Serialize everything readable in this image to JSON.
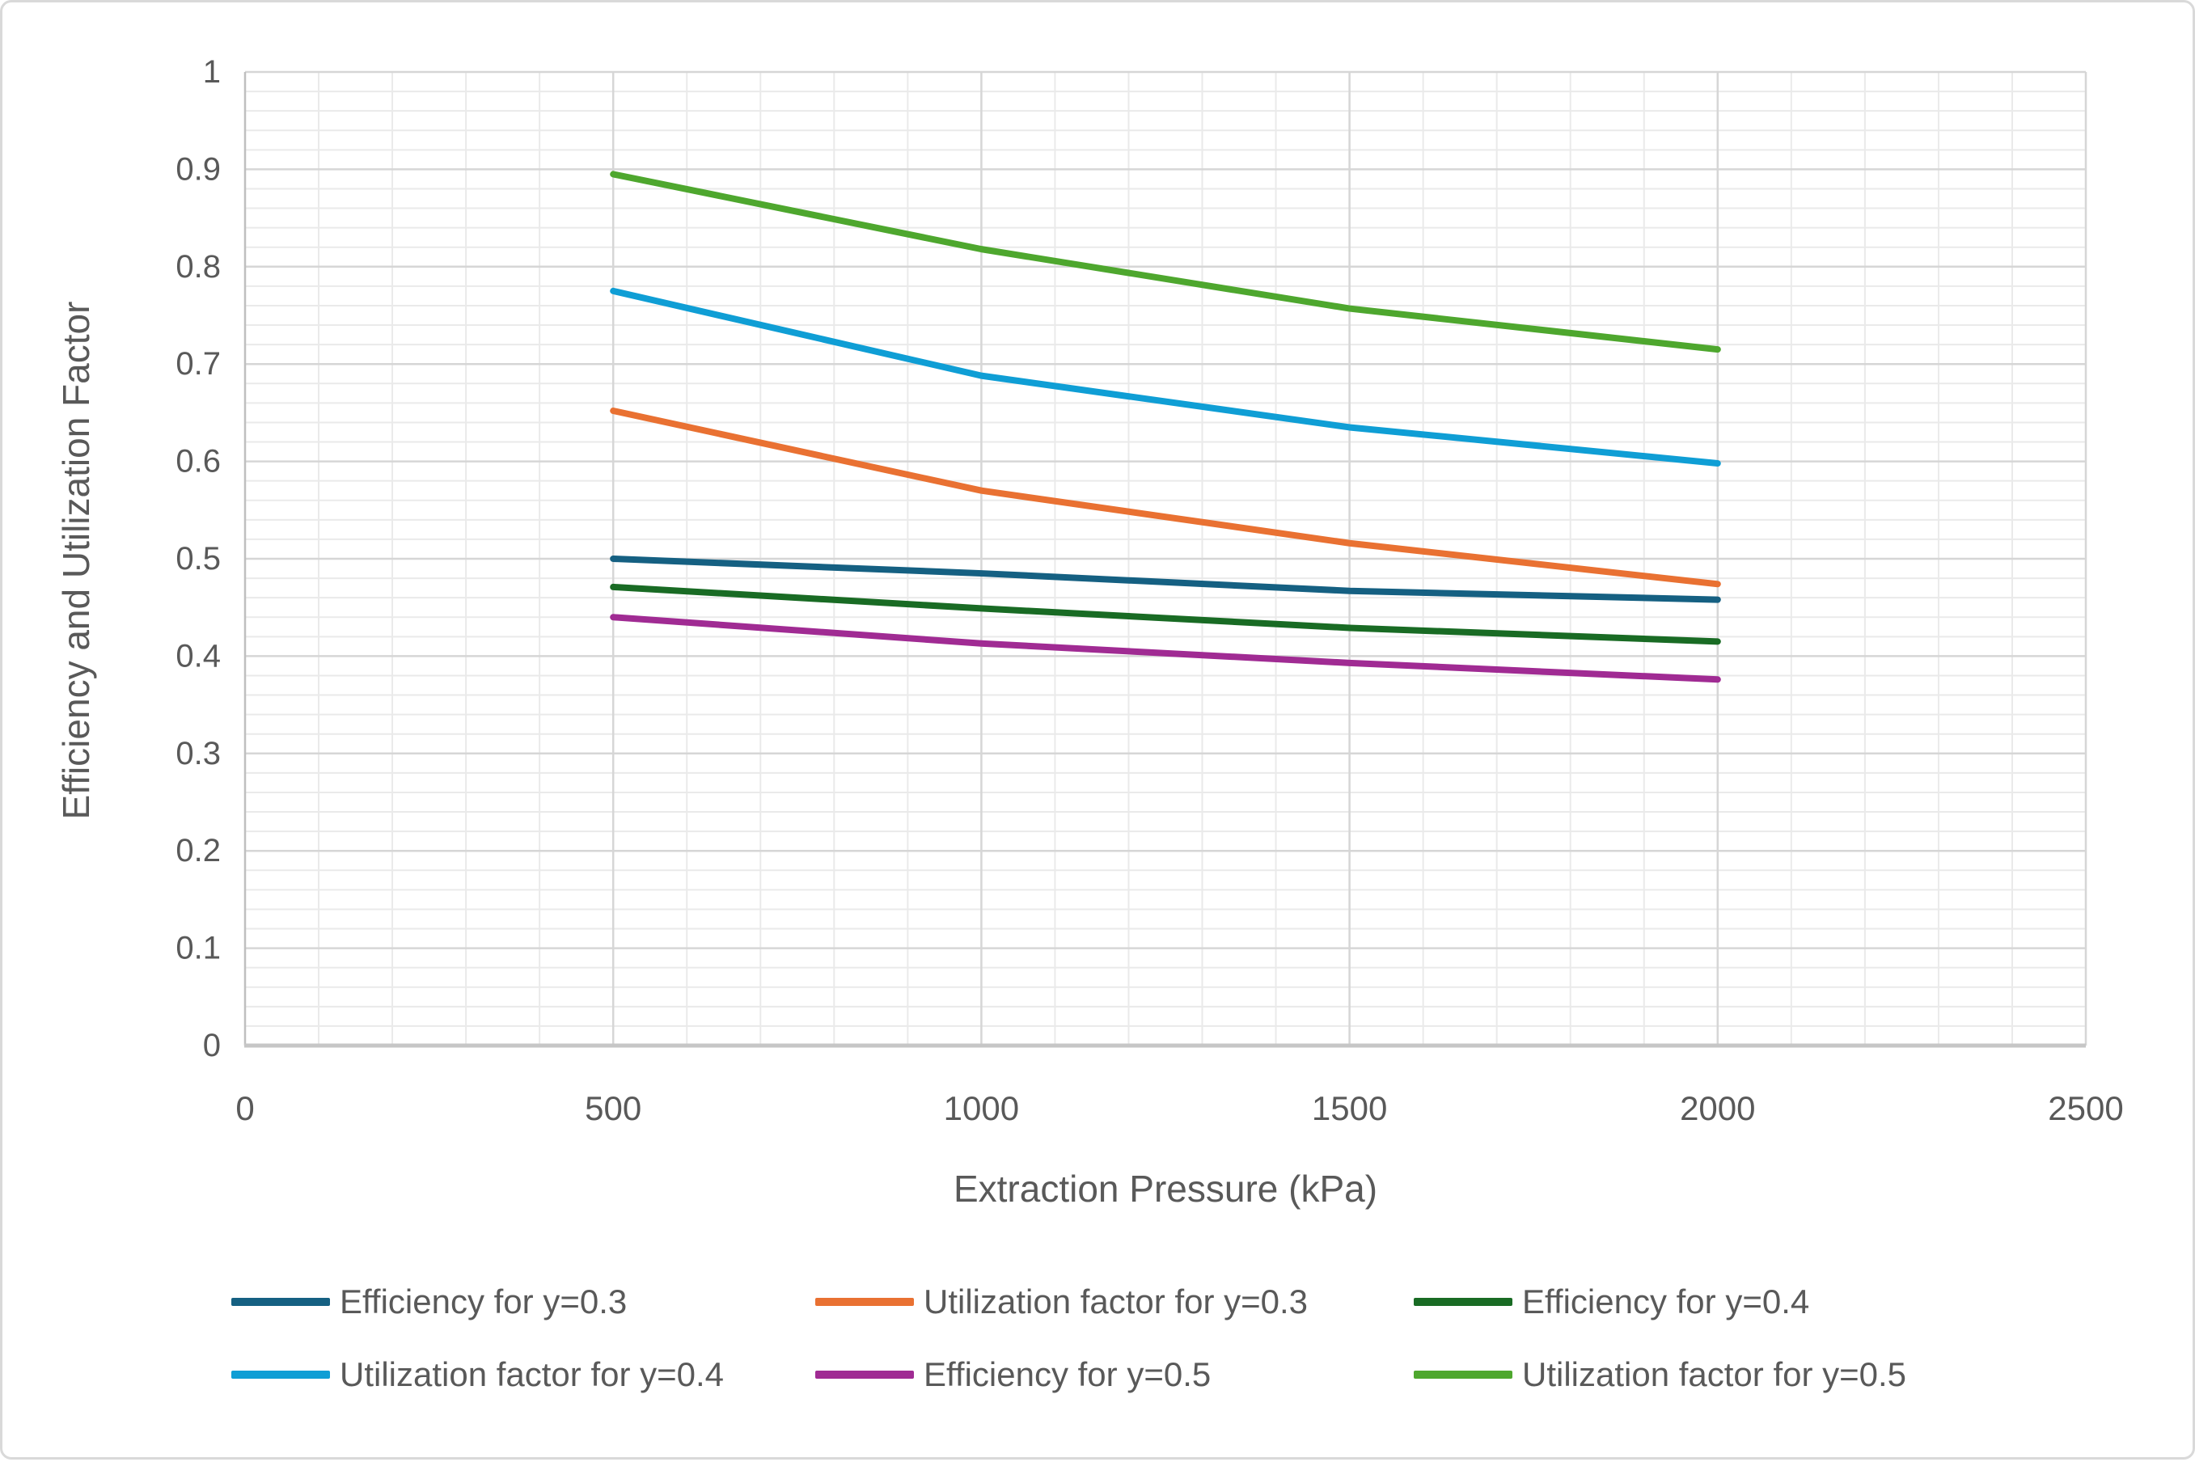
{
  "chart_data": {
    "type": "line",
    "x": [
      500,
      1000,
      1500,
      2000
    ],
    "series": [
      {
        "name": "Efficiency for y=0.3",
        "color": "#156082",
        "values": [
          0.5,
          0.485,
          0.467,
          0.458
        ]
      },
      {
        "name": "Utilization factor for y=0.3",
        "color": "#E97132",
        "values": [
          0.652,
          0.57,
          0.516,
          0.474
        ]
      },
      {
        "name": "Efficiency for y=0.4",
        "color": "#196B24",
        "values": [
          0.471,
          0.449,
          0.429,
          0.415
        ]
      },
      {
        "name": "Utilization factor for y=0.4",
        "color": "#0F9ED5",
        "values": [
          0.775,
          0.688,
          0.635,
          0.598
        ]
      },
      {
        "name": "Efficiency for y=0.5",
        "color": "#A02B93",
        "values": [
          0.44,
          0.413,
          0.393,
          0.376
        ]
      },
      {
        "name": "Utilization factor for y=0.5",
        "color": "#4EA72E",
        "values": [
          0.895,
          0.818,
          0.757,
          0.715
        ]
      }
    ],
    "title": "",
    "xlabel": "Extraction Pressure (kPa)",
    "ylabel": "Efficiency and Utilization Factor",
    "xlim": [
      0,
      2500
    ],
    "ylim": [
      0,
      1
    ],
    "x_ticks": [
      "0",
      "500",
      "1000",
      "1500",
      "2000",
      "2500"
    ],
    "y_ticks": [
      "0",
      "0.1",
      "0.2",
      "0.3",
      "0.4",
      "0.5",
      "0.6",
      "0.7",
      "0.8",
      "0.9",
      "1"
    ],
    "x_major_step": 500,
    "x_minor_step": 100,
    "y_major_step": 0.1,
    "y_minor_step": 0.02,
    "grid": "major and minor, both axes",
    "legend_position": "bottom, 2 rows x 3 columns",
    "legend_row1": [
      "Efficiency for y=0.3",
      "Utilization factor for y=0.3",
      "Efficiency for y=0.4"
    ],
    "legend_row2": [
      "Utilization factor for y=0.4",
      "Efficiency for y=0.5",
      "Utilization factor for y=0.5"
    ]
  },
  "styles": {
    "background": "#FFFFFF",
    "border_color": "#D9D9D9",
    "major_gridline": "#D6D6D6",
    "minor_gridline": "#EAEAEA",
    "axis_line": "#BFBFBF",
    "bottom_axis_line": "#C6C6C6",
    "text_color": "#595959"
  }
}
